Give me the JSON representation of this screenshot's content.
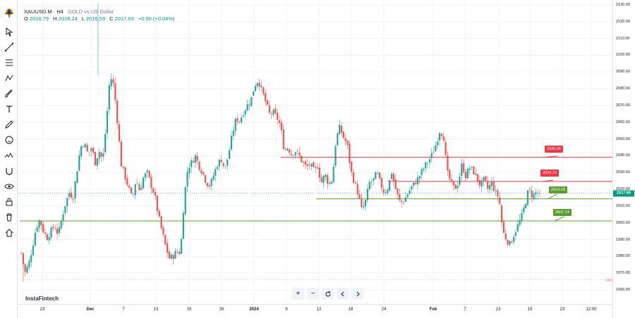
{
  "legend": {
    "symbol": "XAUUSD.M · H4",
    "description": "GOLD vs US Dollar",
    "o_label": "O",
    "o_value": "2016.79",
    "h_label": "H",
    "h_value": "2018.24",
    "l_label": "L",
    "l_value": "2016.59",
    "c_label": "C",
    "c_value": "2017.69",
    "change": "+0.90 (+0.04%)"
  },
  "watermark": "InstaFintech",
  "current_price": {
    "value": 2017.69,
    "label": "2017.69"
  },
  "low_marker": "1966",
  "colors": {
    "up": "#26a69a",
    "down": "#ef5350",
    "resistance": "#f23645",
    "support": "#5d9c2e"
  },
  "nav_buttons": [
    "+",
    "−",
    "reset-icon",
    "chevron-left-icon",
    "chevron-right-icon"
  ],
  "tools": [
    "crosshair-icon",
    "cursor-icon",
    "trend-line-icon",
    "fib-icon",
    "pattern-icon",
    "brush-icon",
    "text-icon",
    "pencil-icon",
    "emoji-icon",
    "ruler-icon",
    "magnet-icon",
    "eye-icon",
    "lock-icon",
    "trash-icon",
    "home-icon"
  ],
  "chart_data": {
    "type": "candlestick",
    "symbol": "XAUUSD.M",
    "timeframe": "H4",
    "ylim": [
      1955,
      2132
    ],
    "y_ticks": [
      "2130.00",
      "2120.00",
      "2110.00",
      "2100.00",
      "2090.00",
      "2080.00",
      "2070.00",
      "2060.00",
      "2050.00",
      "2040.00",
      "2030.00",
      "2020.00",
      "2010.00",
      "2000.00",
      "1990.00",
      "1980.00",
      "1970.00",
      "1960.00"
    ],
    "x_ticks": [
      "23",
      "Dec",
      "7",
      "13",
      "19",
      "26",
      "2024",
      "8",
      "12",
      "18",
      "24",
      "Feb",
      "7",
      "13",
      "19",
      "23",
      "12:00"
    ],
    "bold_x_ticks": [
      "Dec",
      "2024",
      "Feb"
    ],
    "levels": [
      {
        "value": 2039.05,
        "label": "2039.05",
        "type": "resistance"
      },
      {
        "value": 2024.72,
        "label": "2024.72",
        "type": "resistance"
      },
      {
        "value": 2014.29,
        "label": "2014.29",
        "type": "support"
      },
      {
        "value": 2001.14,
        "label": "2001.14",
        "type": "support"
      }
    ],
    "close_path": [
      [
        0,
        1982
      ],
      [
        1,
        1970
      ],
      [
        2,
        1975
      ],
      [
        3,
        1985
      ],
      [
        4,
        1997
      ],
      [
        5,
        2002
      ],
      [
        6,
        1995
      ],
      [
        7,
        1991
      ],
      [
        8,
        1995
      ],
      [
        9,
        1998
      ],
      [
        10,
        1993
      ],
      [
        11,
        2003
      ],
      [
        12,
        2012
      ],
      [
        13,
        2018
      ],
      [
        14,
        2015
      ],
      [
        15,
        2030
      ],
      [
        16,
        2045
      ],
      [
        17,
        2048
      ],
      [
        18,
        2041
      ],
      [
        19,
        2045
      ],
      [
        20,
        2036
      ],
      [
        21,
        2043
      ],
      [
        22,
        2037
      ],
      [
        23,
        2060
      ],
      [
        24,
        2088
      ],
      [
        25,
        2082
      ],
      [
        26,
        2060
      ],
      [
        27,
        2035
      ],
      [
        28,
        2028
      ],
      [
        29,
        2021
      ],
      [
        30,
        2014
      ],
      [
        31,
        2026
      ],
      [
        32,
        2019
      ],
      [
        33,
        2027
      ],
      [
        34,
        2030
      ],
      [
        35,
        2023
      ],
      [
        36,
        2017
      ],
      [
        37,
        2005
      ],
      [
        38,
        1995
      ],
      [
        39,
        1986
      ],
      [
        40,
        1979
      ],
      [
        41,
        1980
      ],
      [
        42,
        1983
      ],
      [
        43,
        1982
      ],
      [
        44,
        2015
      ],
      [
        45,
        2033
      ],
      [
        46,
        2036
      ],
      [
        47,
        2040
      ],
      [
        48,
        2034
      ],
      [
        49,
        2030
      ],
      [
        50,
        2024
      ],
      [
        51,
        2022
      ],
      [
        52,
        2029
      ],
      [
        53,
        2035
      ],
      [
        54,
        2038
      ],
      [
        55,
        2032
      ],
      [
        56,
        2041
      ],
      [
        57,
        2053
      ],
      [
        58,
        2062
      ],
      [
        59,
        2061
      ],
      [
        60,
        2066
      ],
      [
        61,
        2070
      ],
      [
        62,
        2073
      ],
      [
        63,
        2082
      ],
      [
        64,
        2085
      ],
      [
        65,
        2079
      ],
      [
        66,
        2072
      ],
      [
        67,
        2065
      ],
      [
        68,
        2066
      ],
      [
        69,
        2063
      ],
      [
        70,
        2058
      ],
      [
        71,
        2043
      ],
      [
        72,
        2045
      ],
      [
        73,
        2041
      ],
      [
        74,
        2043
      ],
      [
        75,
        2040
      ],
      [
        76,
        2036
      ],
      [
        77,
        2033
      ],
      [
        78,
        2035
      ],
      [
        79,
        2031
      ],
      [
        80,
        2034
      ],
      [
        81,
        2024
      ],
      [
        82,
        2029
      ],
      [
        83,
        2023
      ],
      [
        84,
        2026
      ],
      [
        85,
        2050
      ],
      [
        86,
        2057
      ],
      [
        87,
        2051
      ],
      [
        88,
        2047
      ],
      [
        89,
        2031
      ],
      [
        90,
        2024
      ],
      [
        91,
        2017
      ],
      [
        92,
        2007
      ],
      [
        93,
        2013
      ],
      [
        94,
        2024
      ],
      [
        95,
        2025
      ],
      [
        96,
        2030
      ],
      [
        97,
        2023
      ],
      [
        98,
        2018
      ],
      [
        99,
        2021
      ],
      [
        100,
        2030
      ],
      [
        101,
        2021
      ],
      [
        102,
        2013
      ],
      [
        103,
        2012
      ],
      [
        104,
        2016
      ],
      [
        105,
        2020
      ],
      [
        106,
        2023
      ],
      [
        107,
        2026
      ],
      [
        108,
        2030
      ],
      [
        109,
        2034
      ],
      [
        110,
        2037
      ],
      [
        111,
        2041
      ],
      [
        112,
        2047
      ],
      [
        113,
        2055
      ],
      [
        114,
        2052
      ],
      [
        115,
        2030
      ],
      [
        116,
        2024
      ],
      [
        117,
        2020
      ],
      [
        118,
        2024
      ],
      [
        119,
        2035
      ],
      [
        120,
        2028
      ],
      [
        121,
        2033
      ],
      [
        122,
        2031
      ],
      [
        123,
        2027
      ],
      [
        124,
        2022
      ],
      [
        125,
        2026
      ],
      [
        126,
        2020
      ],
      [
        127,
        2024
      ],
      [
        128,
        2018
      ],
      [
        129,
        2015
      ],
      [
        130,
        1995
      ],
      [
        131,
        1990
      ],
      [
        132,
        1987
      ],
      [
        133,
        1993
      ],
      [
        134,
        1998
      ],
      [
        135,
        2003
      ],
      [
        136,
        2011
      ],
      [
        137,
        2020
      ],
      [
        138,
        2016
      ],
      [
        139,
        2018
      ],
      [
        140,
        2017.69
      ]
    ]
  }
}
